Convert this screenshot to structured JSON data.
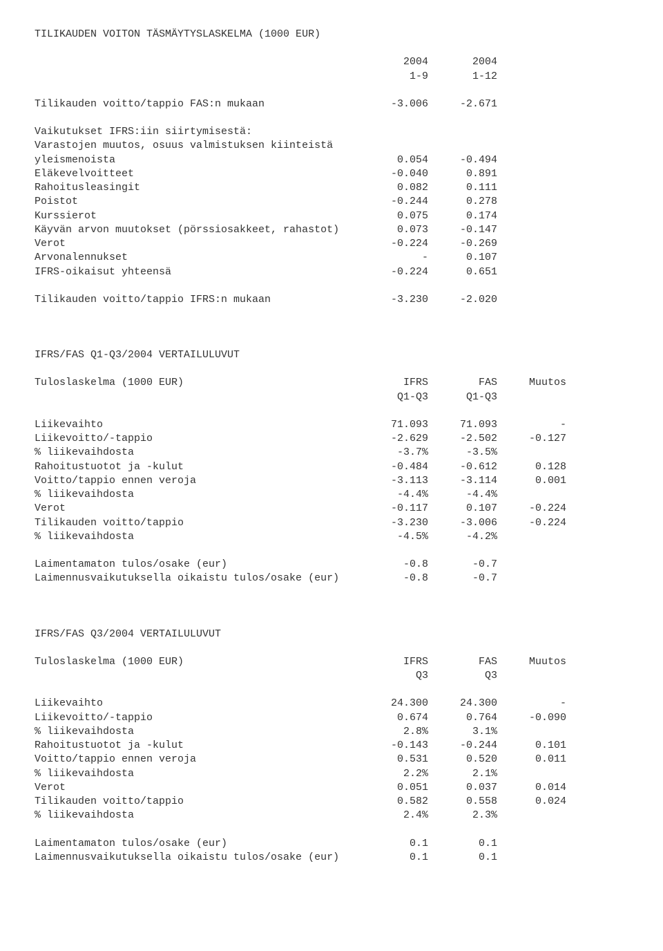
{
  "section1": {
    "title": "TILIKAUDEN VOITON TÄSMÄYTYSLASKELMA (1000 EUR)",
    "header1": {
      "label": "",
      "c1": "2004",
      "c2": "2004"
    },
    "header2": {
      "label": "",
      "c1": "1-9",
      "c2": "1-12"
    },
    "r1": {
      "label": "Tilikauden voitto/tappio FAS:n mukaan",
      "c1": "-3.006",
      "c2": "-2.671"
    },
    "r2": {
      "label": "Vaikutukset IFRS:iin siirtymisestä:"
    },
    "r3": {
      "label": "Varastojen muutos, osuus valmistuksen kiinteistä"
    },
    "r4": {
      "label": "yleismenoista",
      "c1": "0.054",
      "c2": "-0.494"
    },
    "r5": {
      "label": "Eläkevelvoitteet",
      "c1": "-0.040",
      "c2": "0.891"
    },
    "r6": {
      "label": "Rahoitusleasingit",
      "c1": "0.082",
      "c2": "0.111"
    },
    "r7": {
      "label": "Poistot",
      "c1": "-0.244",
      "c2": "0.278"
    },
    "r8": {
      "label": "Kurssierot",
      "c1": "0.075",
      "c2": "0.174"
    },
    "r9": {
      "label": "Käyvän arvon muutokset (pörssiosakkeet, rahastot)",
      "c1": "0.073",
      "c2": "-0.147"
    },
    "r10": {
      "label": "Verot",
      "c1": "-0.224",
      "c2": "-0.269"
    },
    "r11": {
      "label": "Arvonalennukset",
      "c1": "-",
      "c2": "0.107"
    },
    "r12": {
      "label": "IFRS-oikaisut yhteensä",
      "c1": "-0.224",
      "c2": "0.651"
    },
    "r13": {
      "label": "Tilikauden voitto/tappio IFRS:n mukaan",
      "c1": "-3.230",
      "c2": "-2.020"
    }
  },
  "section2": {
    "title": "IFRS/FAS Q1-Q3/2004 VERTAILULUVUT",
    "header1": {
      "label": "Tuloslaskelma (1000 EUR)",
      "c1": "IFRS",
      "c2": "FAS",
      "c3": "Muutos"
    },
    "header2": {
      "label": "",
      "c1": "Q1-Q3",
      "c2": "Q1-Q3",
      "c3": ""
    },
    "r1": {
      "label": "Liikevaihto",
      "c1": "71.093",
      "c2": "71.093",
      "c3": "-"
    },
    "r2": {
      "label": "Liikevoitto/-tappio",
      "c1": "-2.629",
      "c2": "-2.502",
      "c3": "-0.127"
    },
    "r3": {
      "label": "% liikevaihdosta",
      "c1": "-3.7%",
      "c2": "-3.5%",
      "c3": ""
    },
    "r4": {
      "label": "Rahoitustuotot ja -kulut",
      "c1": "-0.484",
      "c2": "-0.612",
      "c3": "0.128"
    },
    "r5": {
      "label": "Voitto/tappio ennen veroja",
      "c1": "-3.113",
      "c2": "-3.114",
      "c3": "0.001"
    },
    "r6": {
      "label": "% liikevaihdosta",
      "c1": "-4.4%",
      "c2": "-4.4%",
      "c3": ""
    },
    "r7": {
      "label": "Verot",
      "c1": "-0.117",
      "c2": "0.107",
      "c3": "-0.224"
    },
    "r8": {
      "label": "Tilikauden voitto/tappio",
      "c1": "-3.230",
      "c2": "-3.006",
      "c3": "-0.224"
    },
    "r9": {
      "label": "% liikevaihdosta",
      "c1": "-4.5%",
      "c2": "-4.2%",
      "c3": ""
    },
    "r10": {
      "label": "Laimentamaton tulos/osake (eur)",
      "c1": "-0.8",
      "c2": "-0.7",
      "c3": ""
    },
    "r11": {
      "label": "Laimennusvaikutuksella oikaistu tulos/osake (eur)",
      "c1": "-0.8",
      "c2": "-0.7",
      "c3": ""
    }
  },
  "section3": {
    "title": "IFRS/FAS Q3/2004 VERTAILULUVUT",
    "header1": {
      "label": "Tuloslaskelma (1000 EUR)",
      "c1": "IFRS",
      "c2": "FAS",
      "c3": "Muutos"
    },
    "header2": {
      "label": "",
      "c1": "Q3",
      "c2": "Q3",
      "c3": ""
    },
    "r1": {
      "label": "Liikevaihto",
      "c1": "24.300",
      "c2": "24.300",
      "c3": "-"
    },
    "r2": {
      "label": "Liikevoitto/-tappio",
      "c1": "0.674",
      "c2": "0.764",
      "c3": "-0.090"
    },
    "r3": {
      "label": "% liikevaihdosta",
      "c1": "2.8%",
      "c2": "3.1%",
      "c3": ""
    },
    "r4": {
      "label": "Rahoitustuotot ja -kulut",
      "c1": "-0.143",
      "c2": "-0.244",
      "c3": "0.101"
    },
    "r5": {
      "label": "Voitto/tappio ennen veroja",
      "c1": "0.531",
      "c2": "0.520",
      "c3": "0.011"
    },
    "r6": {
      "label": "% liikevaihdosta",
      "c1": "2.2%",
      "c2": "2.1%",
      "c3": ""
    },
    "r7": {
      "label": "Verot",
      "c1": "0.051",
      "c2": "0.037",
      "c3": "0.014"
    },
    "r8": {
      "label": "Tilikauden voitto/tappio",
      "c1": "0.582",
      "c2": "0.558",
      "c3": "0.024"
    },
    "r9": {
      "label": "% liikevaihdosta",
      "c1": "2.4%",
      "c2": "2.3%",
      "c3": ""
    },
    "r10": {
      "label": "Laimentamaton tulos/osake (eur)",
      "c1": "0.1",
      "c2": "0.1",
      "c3": ""
    },
    "r11": {
      "label": "Laimennusvaikutuksella oikaistu tulos/osake (eur)",
      "c1": "0.1",
      "c2": "0.1",
      "c3": ""
    }
  }
}
